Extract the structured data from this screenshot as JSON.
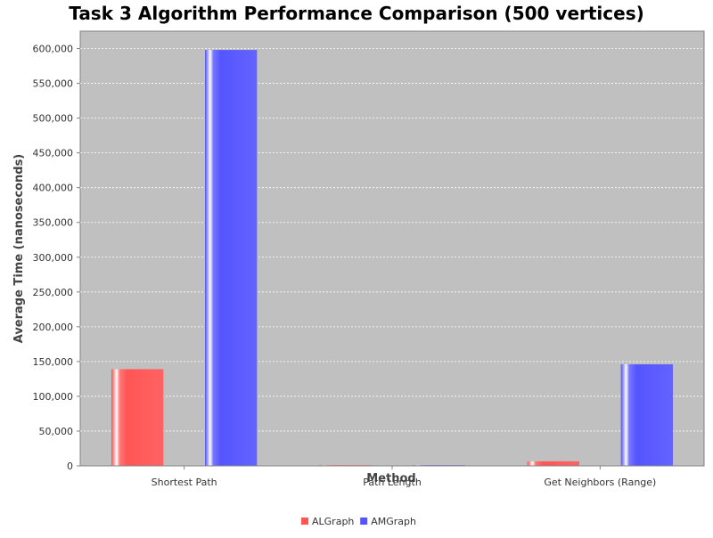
{
  "chart_data": {
    "type": "bar",
    "title": "Task 3 Algorithm Performance Comparison (500 vertices)",
    "xlabel": "Method",
    "ylabel": "Average Time (nanoseconds)",
    "categories": [
      "Shortest Path",
      "Path Length",
      "Get Neighbors (Range)"
    ],
    "series": [
      {
        "name": "ALGraph",
        "color": "#ff5555",
        "values": [
          139000,
          400,
          6500
        ]
      },
      {
        "name": "AMGraph",
        "color": "#5555ff",
        "values": [
          598000,
          300,
          146000
        ]
      }
    ],
    "ylim": [
      0,
      625000
    ],
    "yticks": [
      0,
      50000,
      100000,
      150000,
      200000,
      250000,
      300000,
      350000,
      400000,
      450000,
      500000,
      550000,
      600000
    ],
    "ytick_labels": [
      "0",
      "50,000",
      "100,000",
      "150,000",
      "200,000",
      "250,000",
      "300,000",
      "350,000",
      "400,000",
      "450,000",
      "500,000",
      "550,000",
      "600,000"
    ],
    "grid": true,
    "plot_background": "#c0c0c0",
    "legend_position": "bottom-center"
  }
}
